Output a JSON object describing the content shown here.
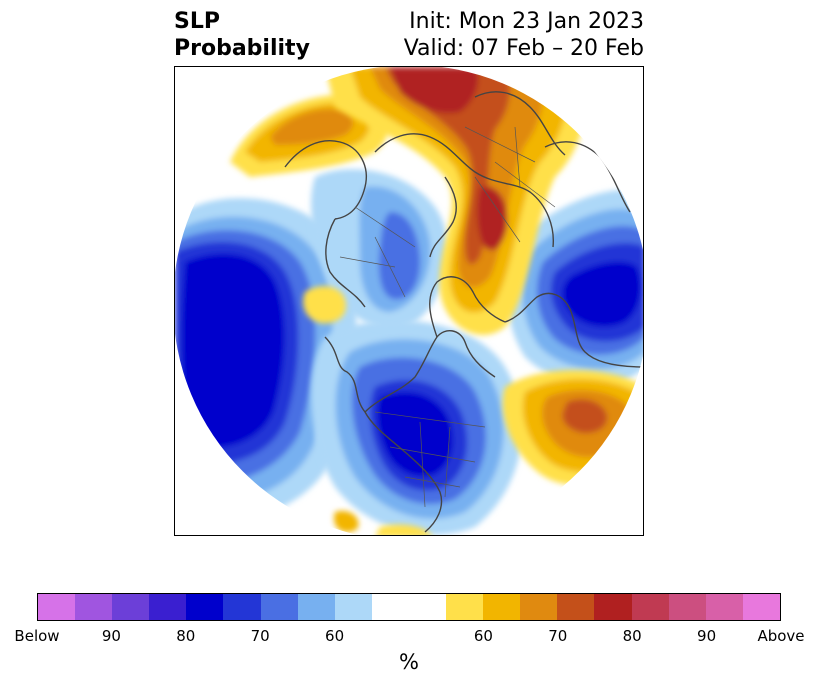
{
  "title": {
    "left_line1": "SLP",
    "left_line2": "Probability",
    "right_line1": "Init: Mon 23 Jan 2023",
    "right_line2": "Valid: 07 Feb – 20 Feb"
  },
  "colorbar": {
    "colors": [
      "#d672e8",
      "#a055e0",
      "#6c3fd8",
      "#3a1fd0",
      "#0000cc",
      "#2336d6",
      "#4a6fe3",
      "#77b0f0",
      "#add8f8",
      "#ffffff",
      "#ffffff",
      "#ffe04a",
      "#f2b500",
      "#e08a10",
      "#c4501a",
      "#b02020",
      "#c03a52",
      "#cc4f80",
      "#d860a8",
      "#e878dd"
    ],
    "labels": [
      "Below",
      "90",
      "80",
      "70",
      "60",
      "60",
      "70",
      "80",
      "90",
      "Above"
    ],
    "unit": "%"
  }
}
